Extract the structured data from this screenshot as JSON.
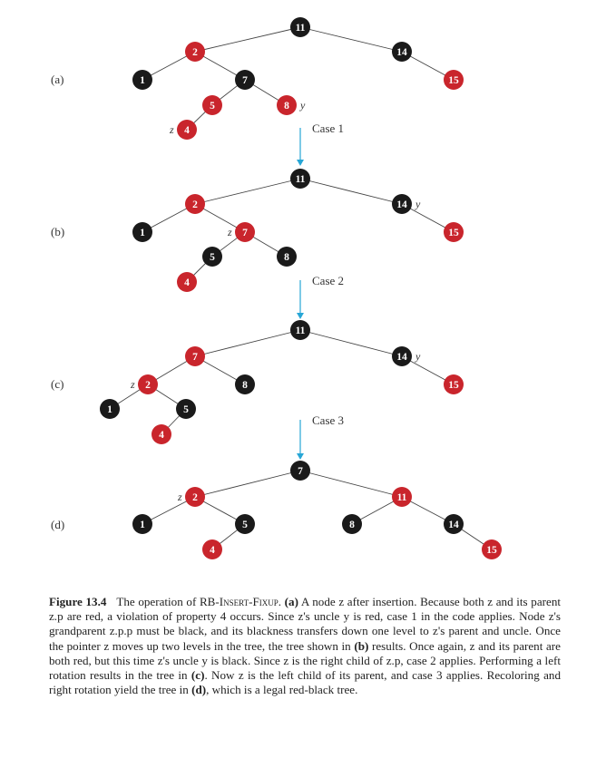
{
  "colors": {
    "red": "#c9252c",
    "black": "#1a1a1a",
    "arrow": "#27a6d6",
    "edge": "#444444",
    "node_text": "#ffffff",
    "label_text": "#333333"
  },
  "panels": [
    {
      "label": "(a)",
      "nodes": [
        {
          "key": "11",
          "color": "black"
        },
        {
          "key": "2",
          "color": "red"
        },
        {
          "key": "14",
          "color": "black"
        },
        {
          "key": "1",
          "color": "black"
        },
        {
          "key": "7",
          "color": "black"
        },
        {
          "key": "15",
          "color": "red"
        },
        {
          "key": "5",
          "color": "red"
        },
        {
          "key": "8",
          "color": "red",
          "tag": "y"
        },
        {
          "key": "4",
          "color": "red",
          "tag": "z"
        }
      ],
      "edges": [
        [
          "11",
          "2"
        ],
        [
          "11",
          "14"
        ],
        [
          "2",
          "1"
        ],
        [
          "2",
          "7"
        ],
        [
          "14",
          "15"
        ],
        [
          "7",
          "5"
        ],
        [
          "7",
          "8"
        ],
        [
          "5",
          "4"
        ]
      ]
    },
    {
      "label": "(b)",
      "nodes": [
        {
          "key": "11",
          "color": "black"
        },
        {
          "key": "2",
          "color": "red"
        },
        {
          "key": "14",
          "color": "black",
          "tag": "y"
        },
        {
          "key": "1",
          "color": "black"
        },
        {
          "key": "7",
          "color": "red",
          "tag": "z"
        },
        {
          "key": "15",
          "color": "red"
        },
        {
          "key": "5",
          "color": "black"
        },
        {
          "key": "8",
          "color": "black"
        },
        {
          "key": "4",
          "color": "red"
        }
      ],
      "edges": [
        [
          "11",
          "2"
        ],
        [
          "11",
          "14"
        ],
        [
          "2",
          "1"
        ],
        [
          "2",
          "7"
        ],
        [
          "14",
          "15"
        ],
        [
          "7",
          "5"
        ],
        [
          "7",
          "8"
        ],
        [
          "5",
          "4"
        ]
      ]
    },
    {
      "label": "(c)",
      "nodes": [
        {
          "key": "11",
          "color": "black"
        },
        {
          "key": "7",
          "color": "red"
        },
        {
          "key": "14",
          "color": "black",
          "tag": "y"
        },
        {
          "key": "2",
          "color": "red",
          "tag": "z"
        },
        {
          "key": "8",
          "color": "black"
        },
        {
          "key": "15",
          "color": "red"
        },
        {
          "key": "1",
          "color": "black"
        },
        {
          "key": "5",
          "color": "black"
        },
        {
          "key": "4",
          "color": "red"
        }
      ],
      "edges": [
        [
          "11",
          "7"
        ],
        [
          "11",
          "14"
        ],
        [
          "7",
          "2"
        ],
        [
          "7",
          "8"
        ],
        [
          "14",
          "15"
        ],
        [
          "2",
          "1"
        ],
        [
          "2",
          "5"
        ],
        [
          "5",
          "4"
        ]
      ]
    },
    {
      "label": "(d)",
      "nodes": [
        {
          "key": "7",
          "color": "black"
        },
        {
          "key": "2",
          "color": "red",
          "tag": "z"
        },
        {
          "key": "11",
          "color": "red"
        },
        {
          "key": "1",
          "color": "black"
        },
        {
          "key": "5",
          "color": "black"
        },
        {
          "key": "8",
          "color": "black"
        },
        {
          "key": "14",
          "color": "black"
        },
        {
          "key": "4",
          "color": "red"
        },
        {
          "key": "15",
          "color": "red"
        }
      ],
      "edges": [
        [
          "7",
          "2"
        ],
        [
          "7",
          "11"
        ],
        [
          "2",
          "1"
        ],
        [
          "2",
          "5"
        ],
        [
          "5",
          "4"
        ],
        [
          "11",
          "8"
        ],
        [
          "11",
          "14"
        ],
        [
          "14",
          "15"
        ]
      ]
    }
  ],
  "transitions": [
    {
      "label": "Case 1"
    },
    {
      "label": "Case 2"
    },
    {
      "label": "Case 3"
    }
  ],
  "caption": {
    "figure_label": "Figure 13.4",
    "text_1": "The operation of RB-",
    "text_sc": "Insert-Fixup",
    "text_2": ". ",
    "a_label": "(a)",
    "text_3": " A node z after insertion. Because both z and its parent z.p are red, a violation of property 4 occurs. Since z's uncle y is red, case 1 in the code applies. Node z's grandparent z.p.p must be black, and its blackness transfers down one level to z's parent and uncle. Once the pointer z moves up two levels in the tree, the tree shown in ",
    "b_label": "(b)",
    "text_4": " results. Once again, z and its parent are both red, but this time z's uncle y is black. Since z is the right child of z.p, case 2 applies. Performing a left rotation results in the tree in ",
    "c_label": "(c)",
    "text_5": ". Now z is the left child of its parent, and case 3 applies. Recoloring and right rotation yield the tree in ",
    "d_label": "(d)",
    "text_6": ", which is a legal red-black tree."
  }
}
